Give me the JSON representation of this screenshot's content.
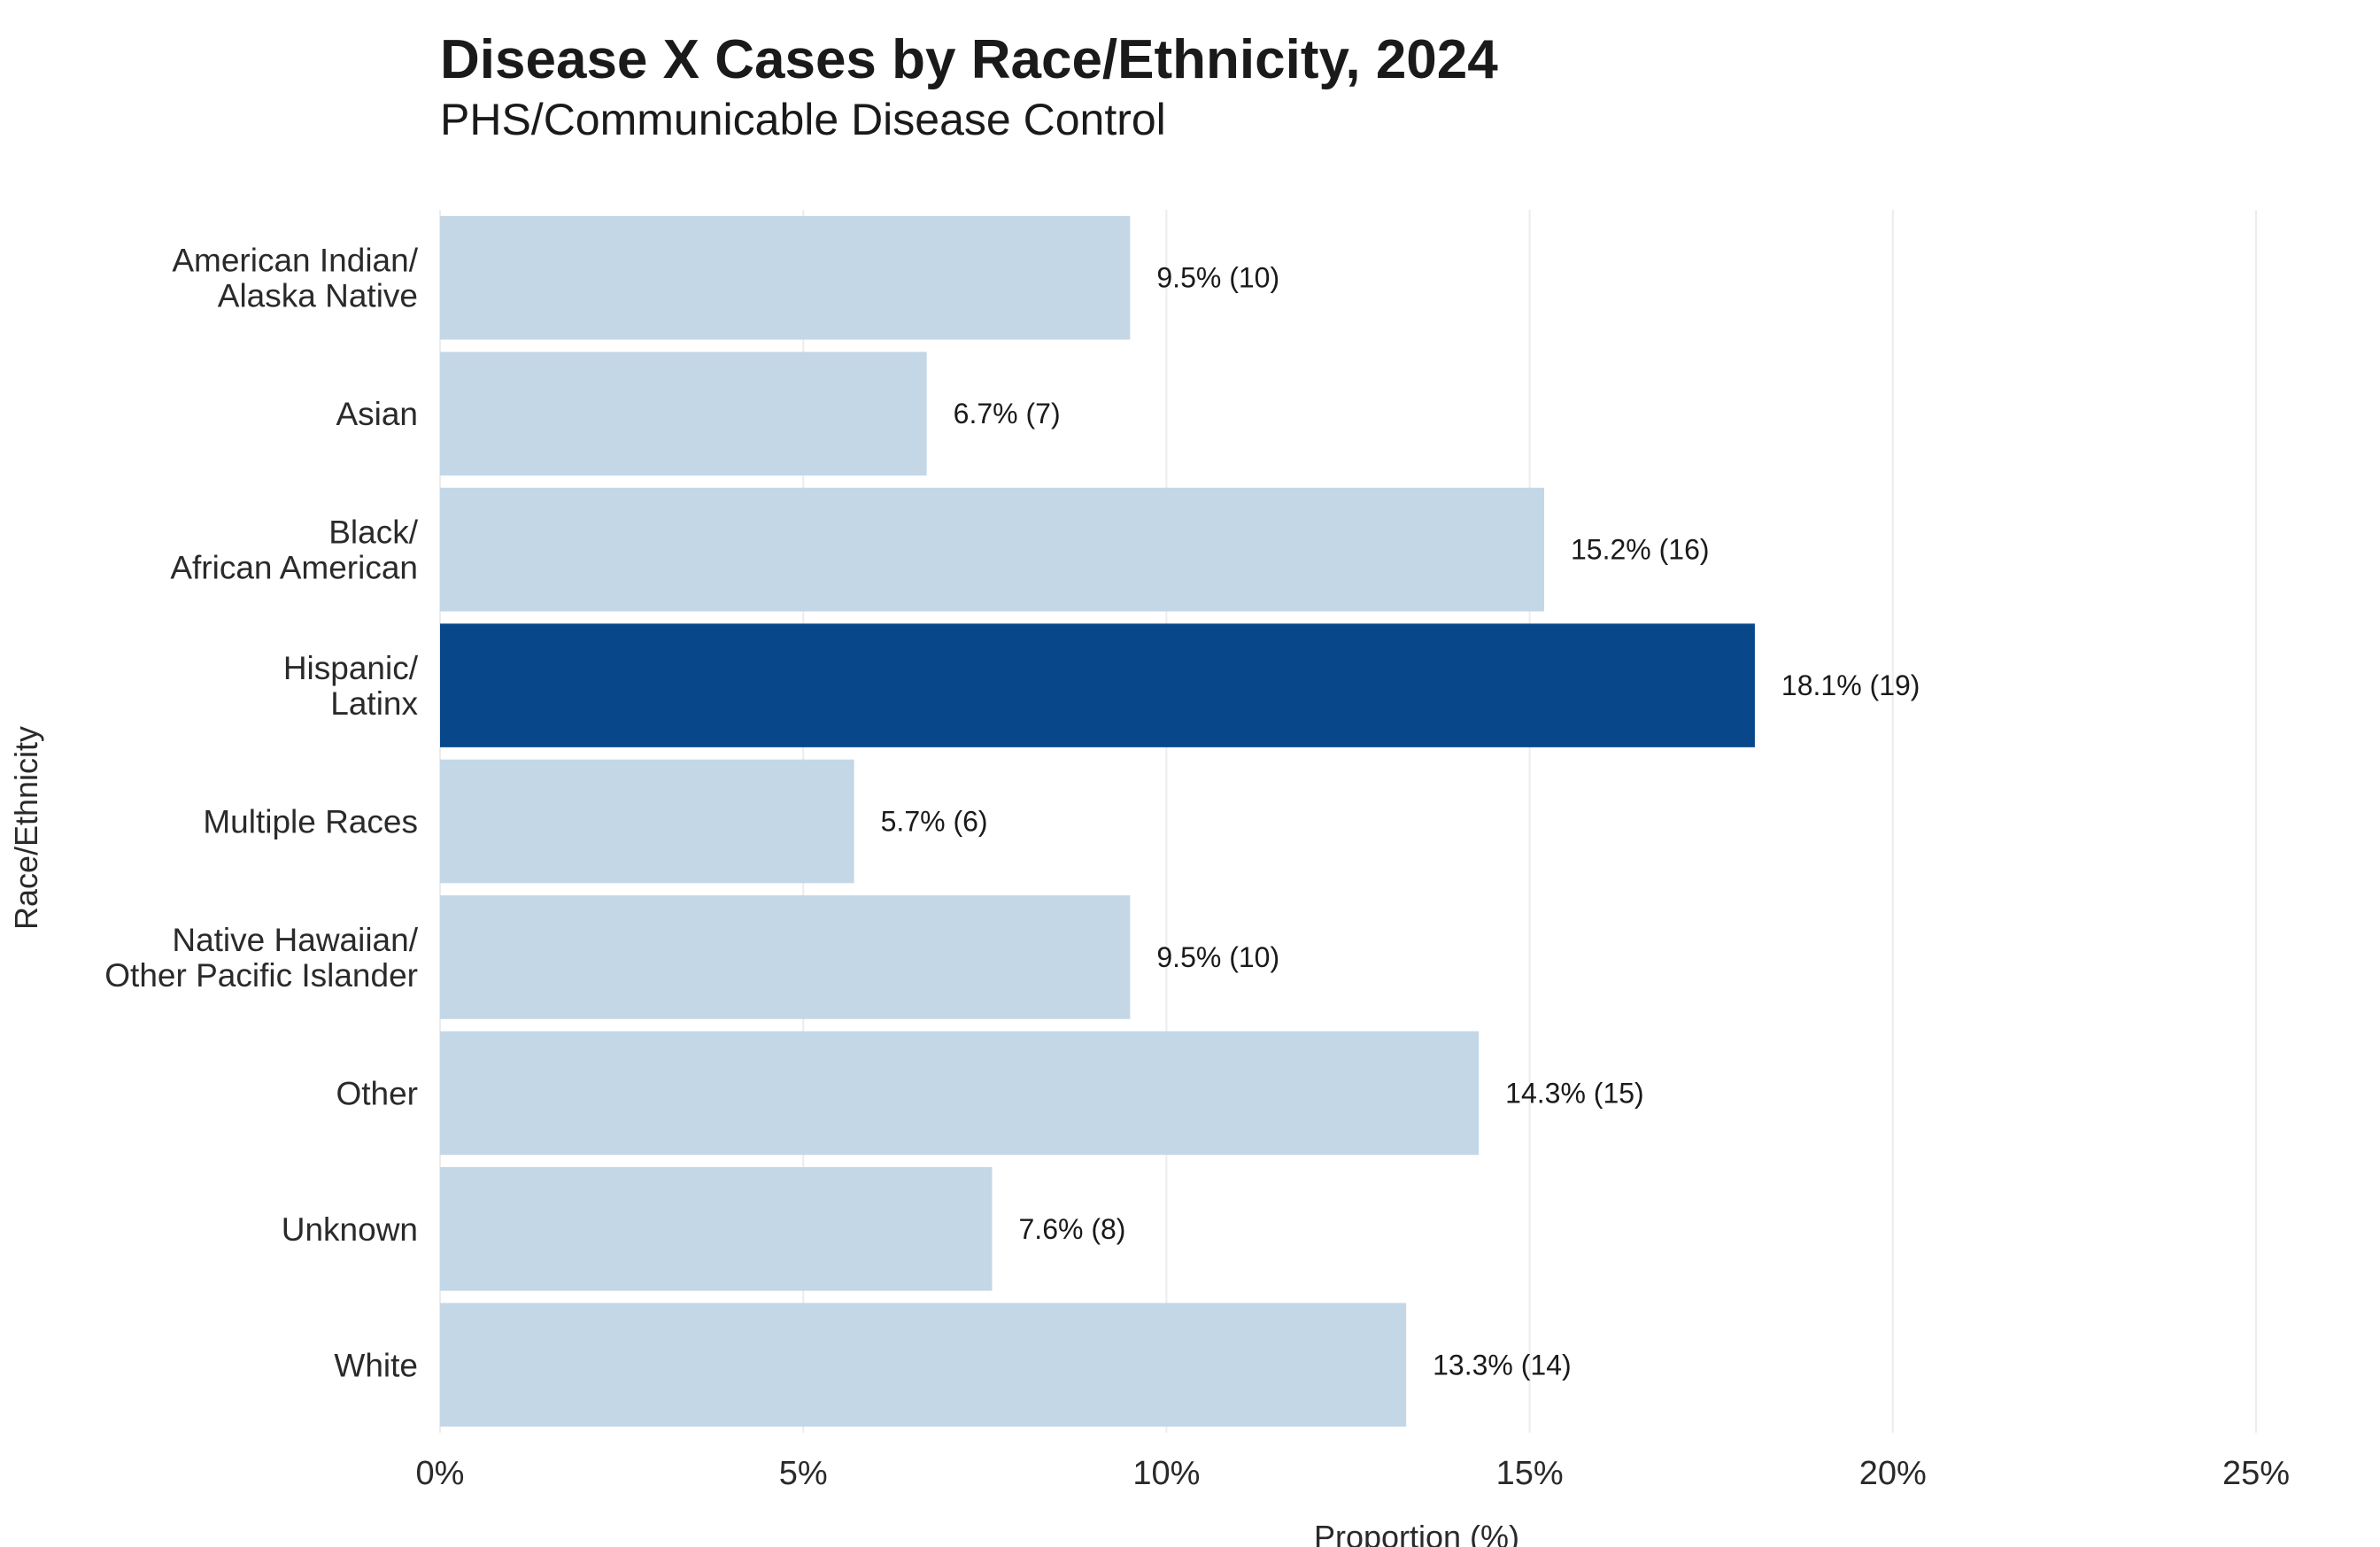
{
  "chart_data": {
    "type": "bar",
    "orientation": "horizontal",
    "title": "Disease X Cases by Race/Ethnicity, 2024",
    "subtitle": "PHS/Communicable Disease Control",
    "xlabel": "Proportion (%)",
    "ylabel": "Race/Ethnicity",
    "xlim": [
      0,
      25
    ],
    "xticks": [
      {
        "value": 0,
        "label": "0%"
      },
      {
        "value": 5,
        "label": "5%"
      },
      {
        "value": 10,
        "label": "10%"
      },
      {
        "value": 15,
        "label": "15%"
      },
      {
        "value": 20,
        "label": "20%"
      },
      {
        "value": 25,
        "label": "25%"
      }
    ],
    "grid": "vertical",
    "legend": "none",
    "colors": {
      "default": "#c3d7e7",
      "highlight": "#084789"
    },
    "categories": [
      {
        "lines": [
          "American Indian/",
          "Alaska Native"
        ],
        "value": 9.5,
        "count": 10,
        "label": "9.5% (10)",
        "highlight": false
      },
      {
        "lines": [
          "Asian"
        ],
        "value": 6.7,
        "count": 7,
        "label": "6.7% (7)",
        "highlight": false
      },
      {
        "lines": [
          "Black/",
          "African American"
        ],
        "value": 15.2,
        "count": 16,
        "label": "15.2% (16)",
        "highlight": false
      },
      {
        "lines": [
          "Hispanic/",
          "Latinx"
        ],
        "value": 18.1,
        "count": 19,
        "label": "18.1% (19)",
        "highlight": true
      },
      {
        "lines": [
          "Multiple Races"
        ],
        "value": 5.7,
        "count": 6,
        "label": "5.7% (6)",
        "highlight": false
      },
      {
        "lines": [
          "Native Hawaiian/",
          "Other Pacific Islander"
        ],
        "value": 9.5,
        "count": 10,
        "label": "9.5% (10)",
        "highlight": false
      },
      {
        "lines": [
          "Other"
        ],
        "value": 14.3,
        "count": 15,
        "label": "14.3% (15)",
        "highlight": false
      },
      {
        "lines": [
          "Unknown"
        ],
        "value": 7.6,
        "count": 8,
        "label": "7.6% (8)",
        "highlight": false
      },
      {
        "lines": [
          "White"
        ],
        "value": 13.3,
        "count": 14,
        "label": "13.3% (14)",
        "highlight": false
      }
    ]
  }
}
